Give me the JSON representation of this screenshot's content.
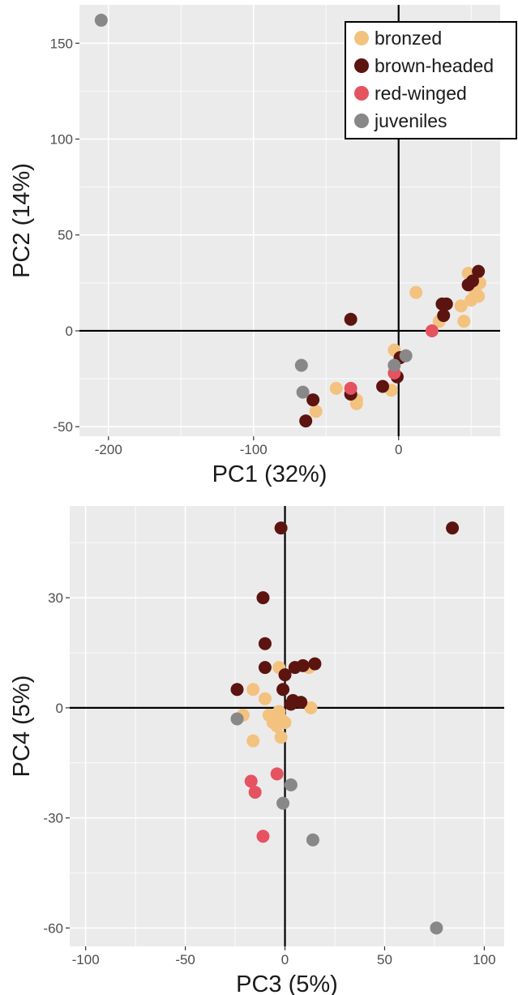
{
  "chart_data": [
    {
      "type": "scatter",
      "title": "",
      "xlabel": "PC1 (32%)",
      "ylabel": "PC2 (14%)",
      "xlim": [
        -220,
        70
      ],
      "ylim": [
        -55,
        170
      ],
      "xticks": [
        -200,
        -100,
        0
      ],
      "xtick_labels": [
        "-200",
        "-100",
        "0"
      ],
      "yticks": [
        -50,
        0,
        50,
        100,
        150
      ],
      "ytick_labels": [
        "-50",
        "0",
        "50",
        "100",
        "150"
      ],
      "grid": true,
      "reference_lines": {
        "x": 0,
        "y": 0
      },
      "legend": {
        "placement": "top-right"
      },
      "series": [
        {
          "name": "bronzed",
          "color": "#f3c27f",
          "points": [
            [
              -57,
              -42
            ],
            [
              -43,
              -30
            ],
            [
              -29,
              -38
            ],
            [
              -29,
              -36
            ],
            [
              -3,
              -10
            ],
            [
              -5,
              -31
            ],
            [
              12,
              20
            ],
            [
              28,
              5
            ],
            [
              43,
              13
            ],
            [
              45,
              5
            ],
            [
              48,
              30
            ],
            [
              50,
              16
            ],
            [
              53,
              20
            ],
            [
              55,
              18
            ],
            [
              56,
              25
            ],
            [
              52,
              27
            ]
          ]
        },
        {
          "name": "brown-headed",
          "color": "#5c1410",
          "points": [
            [
              -33,
              6
            ],
            [
              -33,
              -33
            ],
            [
              -59,
              -36
            ],
            [
              -64,
              -47
            ],
            [
              -11,
              -29
            ],
            [
              -1,
              -24
            ],
            [
              1,
              -14
            ],
            [
              30,
              14
            ],
            [
              33,
              14
            ],
            [
              31,
              8
            ],
            [
              48,
              24
            ],
            [
              51,
              26
            ],
            [
              55,
              31
            ]
          ]
        },
        {
          "name": "red-winged",
          "color": "#e55360",
          "points": [
            [
              -33,
              -30
            ],
            [
              -3,
              -22
            ],
            [
              23,
              0
            ]
          ]
        },
        {
          "name": "juveniles",
          "color": "#888888",
          "points": [
            [
              -205,
              162
            ],
            [
              -67,
              -18
            ],
            [
              -66,
              -32
            ],
            [
              -3,
              -18
            ],
            [
              5,
              -13
            ]
          ]
        }
      ]
    },
    {
      "type": "scatter",
      "title": "",
      "xlabel": "PC3 (5%)",
      "ylabel": "PC4 (5%)",
      "xlim": [
        -108,
        110
      ],
      "ylim": [
        -65,
        55
      ],
      "xticks": [
        -100,
        -50,
        0,
        50,
        100
      ],
      "xtick_labels": [
        "-100",
        "-50",
        "0",
        "50",
        "100"
      ],
      "yticks": [
        -60,
        -30,
        0,
        30
      ],
      "ytick_labels": [
        "-60",
        "-30",
        "0",
        "30"
      ],
      "grid": true,
      "reference_lines": {
        "x": 0,
        "y": 0
      },
      "series": [
        {
          "name": "bronzed",
          "color": "#f3c27f",
          "points": [
            [
              -11,
              30
            ],
            [
              -3,
              11
            ],
            [
              -16,
              5
            ],
            [
              -10,
              2.5
            ],
            [
              12,
              11
            ],
            [
              13,
              0
            ],
            [
              -21,
              -2
            ],
            [
              -8,
              -2
            ],
            [
              -6,
              -4
            ],
            [
              -4,
              -5
            ],
            [
              -3,
              -1
            ],
            [
              -2,
              -3
            ],
            [
              0,
              -4
            ],
            [
              -16,
              -9
            ],
            [
              -2,
              -8
            ]
          ]
        },
        {
          "name": "brown-headed",
          "color": "#5c1410",
          "points": [
            [
              -2,
              49
            ],
            [
              84,
              49
            ],
            [
              -11,
              30
            ],
            [
              -10,
              17.5
            ],
            [
              -10,
              11
            ],
            [
              0,
              9
            ],
            [
              -1,
              5
            ],
            [
              -24,
              5
            ],
            [
              5,
              11
            ],
            [
              9,
              11.5
            ],
            [
              15,
              12
            ],
            [
              3,
              1
            ],
            [
              4,
              2
            ],
            [
              8,
              1.5
            ]
          ]
        },
        {
          "name": "red-winged",
          "color": "#e55360",
          "points": [
            [
              -17,
              -20
            ],
            [
              -15,
              -23
            ],
            [
              -4,
              -18
            ],
            [
              -11,
              -35
            ]
          ]
        },
        {
          "name": "juveniles",
          "color": "#888888",
          "points": [
            [
              -24,
              -3
            ],
            [
              3,
              -21
            ],
            [
              -1,
              -26
            ],
            [
              14,
              -36
            ],
            [
              76,
              -60
            ]
          ]
        }
      ]
    }
  ]
}
